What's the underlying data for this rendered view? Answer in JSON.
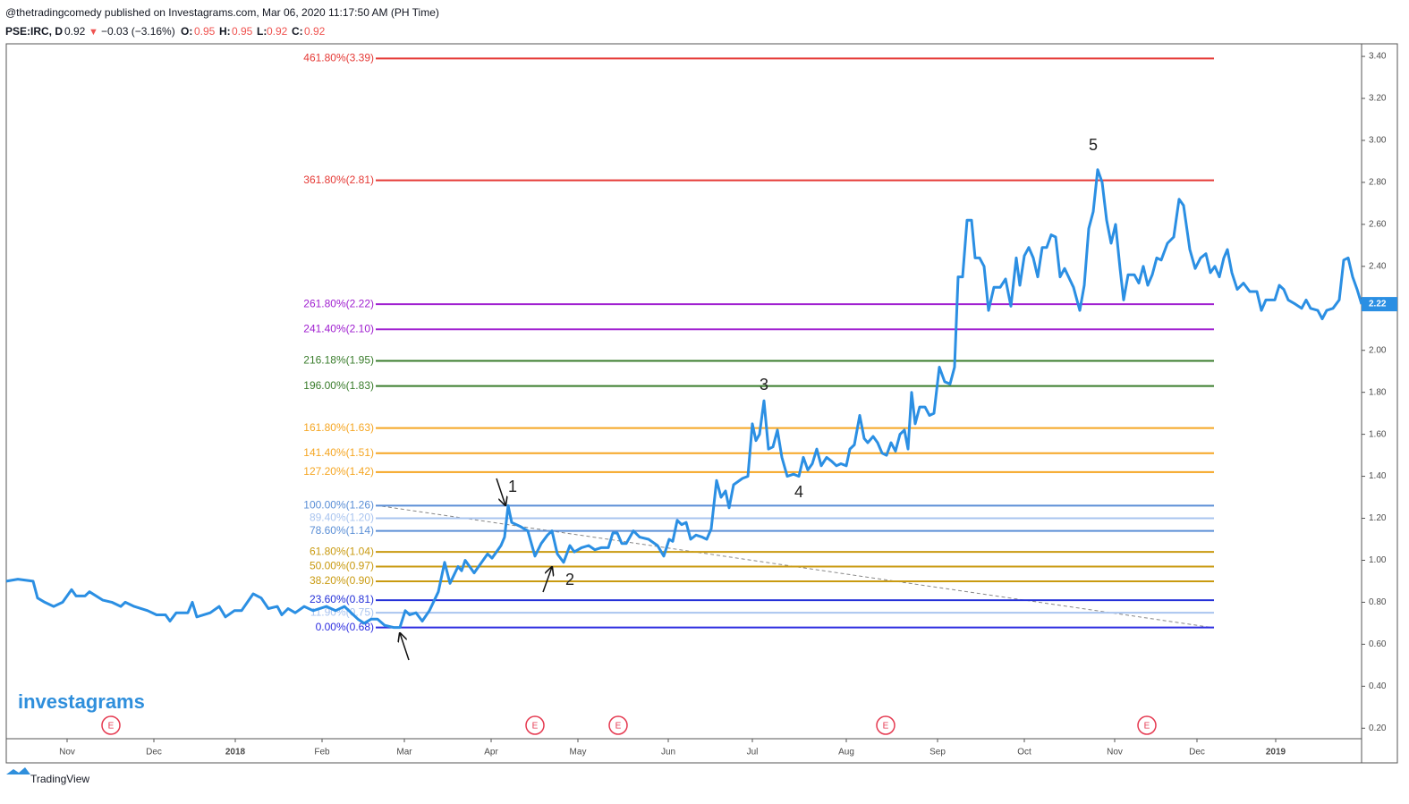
{
  "header": {
    "publisher": "@thetradingcomedy published on Investagrams.com, Mar 06, 2020 11:17:50 AM (PH Time)",
    "symbol": "PSE:IRC, D",
    "last": "0.92",
    "arrow": "▼",
    "change": "−0.03 (−3.16%)",
    "o_label": "O:",
    "o": "0.95",
    "h_label": "H:",
    "h": "0.95",
    "l_label": "L:",
    "l": "0.92",
    "c_label": "C:",
    "c": "0.92"
  },
  "branding": {
    "watermark": "investagrams",
    "footer": "TradingView"
  },
  "chart_data": {
    "type": "line",
    "series": [
      {
        "name": "PSE:IRC",
        "color": "#2b8fe3",
        "x": [
          0,
          2.6,
          6,
          7,
          8.6,
          10.6,
          12.6,
          14.6,
          15.6,
          17.6,
          18.6,
          21.6,
          23.6,
          25.6,
          26.6,
          28.6,
          31.6,
          33.6,
          35.6,
          36.6,
          38,
          40.6,
          41.6,
          42.6,
          45.6,
          47.6,
          49,
          51,
          52.6,
          55.2,
          57,
          58.6,
          60.6,
          61.6,
          63,
          64.6,
          66.6,
          68.6,
          71.6,
          73.6,
          75.6,
          77.6,
          78.6,
          80,
          81.6,
          83,
          84.6,
          86.6,
          88,
          89.2,
          90.2,
          91.6,
          93,
          94.6,
          96.6,
          98,
          99.2,
          101,
          101.8,
          102.6,
          104.6,
          107.6,
          108.6,
          110.6,
          111.4,
          112.2,
          113,
          115,
          116.6,
          118.2,
          119.6,
          121,
          122,
          123.2,
          124.6,
          126,
          127,
          128.6,
          130.2,
          131.6,
          133,
          134.6,
          135.6,
          136.6,
          137.6,
          138.6,
          140.2,
          141.6,
          143.6,
          145.6,
          147,
          148.2,
          149,
          150,
          151,
          152,
          153,
          154.2,
          155.6,
          156.6,
          157.6,
          158.8,
          159.8,
          160.8,
          161.6,
          162.6,
          164.6,
          165.8,
          166.8,
          167.6,
          168.4,
          169.4,
          170.4,
          171.4,
          172.4,
          173.4,
          174.6,
          176,
          177.2,
          178.2,
          179.2,
          180.2,
          181.2,
          182.2,
          183.4,
          184.6,
          185.6,
          186.6,
          187.8,
          188.6,
          189.6,
          190.8,
          191.8,
          192.6,
          193.8,
          194.8,
          195.8,
          196.8,
          197.8,
          198.8,
          199.8,
          200.8,
          201.6,
          202.4,
          203.2,
          204.2,
          205.4,
          206.4,
          207.4,
          208.6,
          209.8,
          211,
          212,
          212.8,
          213.8,
          214.8,
          215.8,
          216.6,
          217.6,
          218.6,
          219.6,
          220.8,
          222.2,
          223.4,
          224.6,
          225.8,
          226.6,
          227.6,
          228.6,
          229.6,
          230.6,
          231.6,
          232.6,
          233.6,
          234.6,
          235.6,
          236.6,
          238.6,
          240,
          241,
          242,
          243,
          244,
          245,
          246,
          247,
          248,
          249,
          249.8,
          250.8,
          252.2,
          253.2,
          254.2,
          255.2,
          256.2,
          257.2,
          258.2,
          259.6,
          261,
          262.2,
          263.2,
          264.6,
          265.8,
          267,
          268.2,
          269.2,
          270.2,
          271.2,
          272.2,
          273,
          274,
          275.2,
          276.6,
          278,
          279.6,
          280.6,
          281.6,
          283.6,
          284.6,
          285.6,
          286.6,
          288.2,
          289.6,
          290.6,
          291.6,
          293.2,
          294.2,
          295.2,
          296.6,
          298,
          299,
          300,
          301,
          302,
          303
        ],
        "values": [
          0.9,
          0.91,
          0.9,
          0.82,
          0.8,
          0.78,
          0.8,
          0.86,
          0.83,
          0.83,
          0.85,
          0.81,
          0.8,
          0.78,
          0.8,
          0.78,
          0.76,
          0.74,
          0.74,
          0.71,
          0.75,
          0.75,
          0.8,
          0.73,
          0.75,
          0.78,
          0.73,
          0.76,
          0.76,
          0.84,
          0.82,
          0.77,
          0.78,
          0.74,
          0.77,
          0.75,
          0.78,
          0.76,
          0.78,
          0.76,
          0.78,
          0.74,
          0.72,
          0.7,
          0.72,
          0.72,
          0.69,
          0.68,
          0.68,
          0.76,
          0.74,
          0.75,
          0.71,
          0.76,
          0.85,
          0.99,
          0.89,
          0.97,
          0.95,
          1.0,
          0.94,
          1.03,
          1.01,
          1.07,
          1.11,
          1.26,
          1.18,
          1.16,
          1.14,
          1.02,
          1.08,
          1.12,
          1.14,
          1.03,
          0.99,
          1.07,
          1.04,
          1.06,
          1.07,
          1.05,
          1.06,
          1.06,
          1.13,
          1.13,
          1.08,
          1.08,
          1.14,
          1.11,
          1.1,
          1.07,
          1.02,
          1.1,
          1.09,
          1.19,
          1.17,
          1.18,
          1.1,
          1.12,
          1.11,
          1.1,
          1.15,
          1.38,
          1.3,
          1.33,
          1.25,
          1.36,
          1.39,
          1.4,
          1.65,
          1.57,
          1.6,
          1.76,
          1.53,
          1.54,
          1.62,
          1.49,
          1.4,
          1.41,
          1.4,
          1.49,
          1.43,
          1.46,
          1.53,
          1.45,
          1.49,
          1.47,
          1.45,
          1.46,
          1.45,
          1.53,
          1.55,
          1.69,
          1.58,
          1.56,
          1.59,
          1.56,
          1.51,
          1.5,
          1.56,
          1.52,
          1.6,
          1.62,
          1.53,
          1.8,
          1.65,
          1.73,
          1.73,
          1.69,
          1.7,
          1.92,
          1.85,
          1.84,
          1.92,
          2.35,
          2.35,
          2.62,
          2.62,
          2.44,
          2.44,
          2.4,
          2.19,
          2.3,
          2.3,
          2.34,
          2.21,
          2.44,
          2.31,
          2.45,
          2.49,
          2.44,
          2.35,
          2.49,
          2.49,
          2.55,
          2.54,
          2.35,
          2.39,
          2.3,
          2.19,
          2.31,
          2.58,
          2.66,
          2.86,
          2.8,
          2.62,
          2.51,
          2.6,
          2.39,
          2.24,
          2.36,
          2.36,
          2.32,
          2.4,
          2.31,
          2.36,
          2.44,
          2.43,
          2.51,
          2.54,
          2.72,
          2.69,
          2.48,
          2.39,
          2.44,
          2.46,
          2.37,
          2.4,
          2.35,
          2.44,
          2.48,
          2.37,
          2.29,
          2.32,
          2.28,
          2.28,
          2.19,
          2.24,
          2.24,
          2.31,
          2.29,
          2.24,
          2.22,
          2.2,
          2.24,
          2.2,
          2.19,
          2.15,
          2.19,
          2.2,
          2.24,
          2.43,
          2.44,
          2.35,
          2.29,
          2.22
        ]
      }
    ],
    "xlim": [
      0,
      303
    ],
    "xticks": [
      {
        "value": 13.6,
        "label": "Nov"
      },
      {
        "value": 33,
        "label": "Dec"
      },
      {
        "value": 51.2,
        "label": "2018"
      },
      {
        "value": 70.6,
        "label": "Feb"
      },
      {
        "value": 89,
        "label": "Mar"
      },
      {
        "value": 108.4,
        "label": "Apr"
      },
      {
        "value": 127.8,
        "label": "May"
      },
      {
        "value": 148,
        "label": "Jun"
      },
      {
        "value": 166.8,
        "label": "Jul"
      },
      {
        "value": 187.8,
        "label": "Aug"
      },
      {
        "value": 208.2,
        "label": "Sep"
      },
      {
        "value": 227.6,
        "label": "Oct"
      },
      {
        "value": 247.8,
        "label": "Nov"
      },
      {
        "value": 266.2,
        "label": "Dec"
      },
      {
        "value": 283.8,
        "label": "2019"
      }
    ],
    "ylim": [
      0.15,
      3.46
    ],
    "yticks": [
      {
        "value": 0.2,
        "label": "0.20"
      },
      {
        "value": 0.4,
        "label": "0.40"
      },
      {
        "value": 0.6,
        "label": "0.60"
      },
      {
        "value": 0.8,
        "label": "0.80"
      },
      {
        "value": 1,
        "label": "1.00"
      },
      {
        "value": 1.2,
        "label": "1.20"
      },
      {
        "value": 1.4,
        "label": "1.40"
      },
      {
        "value": 1.6,
        "label": "1.60"
      },
      {
        "value": 1.8,
        "label": "1.80"
      },
      {
        "value": 2,
        "label": "2.00"
      },
      {
        "value": 2.2,
        "label": "2.20"
      },
      {
        "value": 2.4,
        "label": "2.40"
      },
      {
        "value": 2.6,
        "label": "2.60"
      },
      {
        "value": 2.8,
        "label": "2.80"
      },
      {
        "value": 3,
        "label": "3.00"
      },
      {
        "value": 3.2,
        "label": "3.20"
      },
      {
        "value": 3.4,
        "label": "3.40"
      }
    ],
    "last_price": 2.22,
    "fib_levels": [
      {
        "label": "461.80%(3.39)",
        "value": 3.39,
        "color": "#e53935"
      },
      {
        "label": "361.80%(2.81)",
        "value": 2.81,
        "color": "#e53935"
      },
      {
        "label": "261.80%(2.22)",
        "value": 2.22,
        "color": "#a020d0"
      },
      {
        "label": "241.40%(2.10)",
        "value": 2.1,
        "color": "#a020d0"
      },
      {
        "label": "216.18%(1.95)",
        "value": 1.95,
        "color": "#3a7d2c"
      },
      {
        "label": "196.00%(1.83)",
        "value": 1.83,
        "color": "#3a7d2c"
      },
      {
        "label": "161.80%(1.63)",
        "value": 1.63,
        "color": "#f5a623"
      },
      {
        "label": "141.40%(1.51)",
        "value": 1.51,
        "color": "#f5a623"
      },
      {
        "label": "127.20%(1.42)",
        "value": 1.42,
        "color": "#f5a623"
      },
      {
        "label": "100.00%(1.26)",
        "value": 1.26,
        "color": "#5b8fd6"
      },
      {
        "label": "89.40%(1.20)",
        "value": 1.2,
        "color": "#a9c4ef"
      },
      {
        "label": "78.60%(1.14)",
        "value": 1.14,
        "color": "#5b8fd6"
      },
      {
        "label": "61.80%(1.04)",
        "value": 1.04,
        "color": "#c99a10"
      },
      {
        "label": "50.00%(0.97)",
        "value": 0.97,
        "color": "#c99a10"
      },
      {
        "label": "38.20%(0.90)",
        "value": 0.9,
        "color": "#c99a10"
      },
      {
        "label": "23.60%(0.81)",
        "value": 0.81,
        "color": "#2430d8"
      },
      {
        "label": "11.90%(0.75)",
        "value": 0.75,
        "color": "#a9c4ef"
      },
      {
        "label": "0.00%(0.68)",
        "value": 0.68,
        "color": "#2d2de0"
      }
    ],
    "annotations": [
      "1",
      "2",
      "3",
      "4",
      "5"
    ],
    "earnings_markers": [
      "E",
      "E",
      "E",
      "E",
      "E"
    ]
  }
}
